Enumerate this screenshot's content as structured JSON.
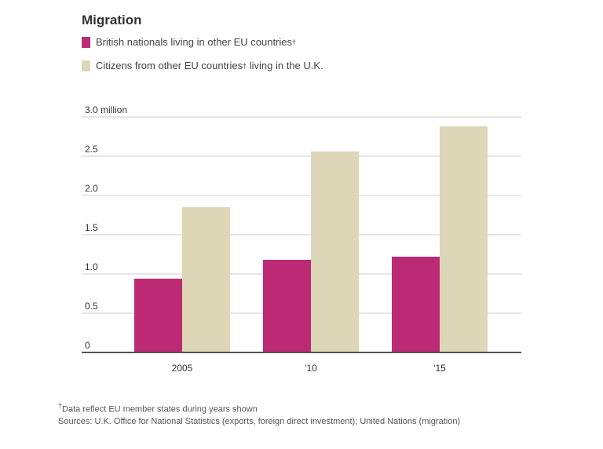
{
  "chart_data": {
    "type": "bar",
    "title": "Migration",
    "categories": [
      "2005",
      "'10",
      "'15"
    ],
    "series": [
      {
        "name": "British nationals living in other EU countries",
        "marker": "†",
        "color": "#bc2a76",
        "values": [
          0.94,
          1.18,
          1.22
        ]
      },
      {
        "name": "Citizens from other EU countries",
        "marker": "†",
        "name_suffix": " living in the U.K.",
        "color": "#ddd7b8",
        "values": [
          1.85,
          2.56,
          2.88
        ]
      }
    ],
    "ylim": [
      0,
      3.0
    ],
    "yticks": [
      "0",
      "0.5",
      "1.0",
      "1.5",
      "2.0",
      "2.5",
      "3.0 million"
    ],
    "ytick_values": [
      0,
      0.5,
      1.0,
      1.5,
      2.0,
      2.5,
      3.0
    ],
    "grid": true,
    "legend_placement": "top-left"
  },
  "footnotes": {
    "marker": "†",
    "note": "Data reflect EU member states during years shown",
    "sources": "Sources: U.K. Office for National Statistics (exports, foreign direct investment); United Nations (migration)"
  }
}
